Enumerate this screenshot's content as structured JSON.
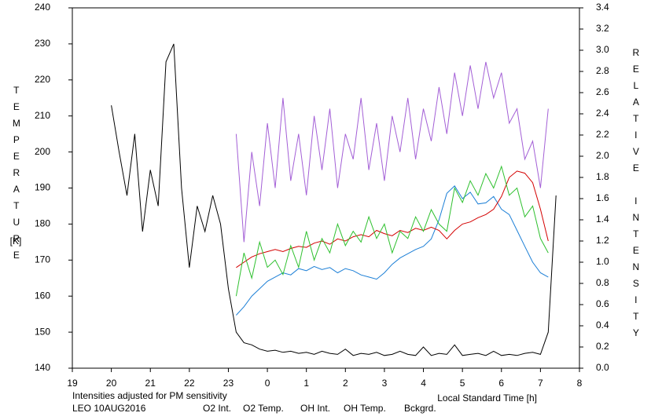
{
  "chart_data": {
    "type": "line",
    "y_label": "TEMPERATURE",
    "y_unit": "[K]",
    "y2_label": "RELATIVE INTENSITY",
    "x_label": "Local Standard Time [h]",
    "note": "Intensities adjusted for PM sensitivity",
    "station": "LEO 10AUG2016",
    "note_color": "#2ec02e",
    "xlim": [
      19,
      32
    ],
    "xticks": [
      19,
      20,
      21,
      22,
      23,
      {
        "value": 24,
        "label": "0"
      },
      {
        "value": 25,
        "label": "1"
      },
      {
        "value": 26,
        "label": "2"
      },
      {
        "value": 27,
        "label": "3"
      },
      {
        "value": 28,
        "label": "4"
      },
      {
        "value": 29,
        "label": "5"
      },
      {
        "value": 30,
        "label": "6"
      },
      {
        "value": 31,
        "label": "7"
      },
      {
        "value": 32,
        "label": "8"
      }
    ],
    "ylim": [
      140,
      240
    ],
    "yticks": [
      140,
      150,
      160,
      170,
      180,
      190,
      200,
      210,
      220,
      230,
      240
    ],
    "y2lim": [
      0,
      3.4
    ],
    "y2ticks": [
      {
        "value": 0,
        "label": "0.0"
      },
      0.2,
      0.4,
      0.6,
      0.8,
      {
        "value": 1,
        "label": "1.0"
      },
      1.2,
      1.4,
      1.6,
      1.8,
      {
        "value": 2,
        "label": "2.0"
      },
      2.2,
      2.4,
      2.6,
      2.8,
      {
        "value": 3,
        "label": "3.0"
      },
      3.2,
      3.4
    ],
    "x": [
      23.2,
      23.4,
      23.6,
      23.8,
      24.0,
      24.2,
      24.4,
      24.6,
      24.8,
      25.0,
      25.2,
      25.4,
      25.6,
      25.8,
      26.0,
      26.2,
      26.4,
      26.6,
      26.8,
      27.0,
      27.2,
      27.4,
      27.6,
      27.8,
      28.0,
      28.2,
      28.4,
      28.6,
      28.8,
      29.0,
      29.2,
      29.4,
      29.6,
      29.8,
      30.0,
      30.2,
      30.4,
      30.6,
      30.8,
      31.0,
      31.2
    ],
    "series": [
      {
        "name": "O2 Int.",
        "color": "#1c7fd6",
        "axis": "y2",
        "values": [
          0.5,
          0.58,
          0.68,
          0.75,
          0.82,
          0.86,
          0.9,
          0.88,
          0.94,
          0.92,
          0.96,
          0.93,
          0.95,
          0.9,
          0.94,
          0.92,
          0.88,
          0.86,
          0.84,
          0.9,
          0.98,
          1.04,
          1.08,
          1.12,
          1.15,
          1.22,
          1.4,
          1.65,
          1.72,
          1.6,
          1.66,
          1.55,
          1.56,
          1.62,
          1.5,
          1.45,
          1.3,
          1.15,
          1.0,
          0.9,
          0.86
        ]
      },
      {
        "name": "O2 Temp.",
        "color": "#a35fd6",
        "values": [
          205,
          175,
          200,
          185,
          208,
          190,
          215,
          192,
          205,
          188,
          210,
          195,
          212,
          190,
          205,
          198,
          215,
          195,
          208,
          192,
          210,
          200,
          215,
          198,
          212,
          203,
          218,
          205,
          222,
          210,
          224,
          212,
          225,
          215,
          222,
          208,
          212,
          198,
          203,
          190,
          212
        ]
      },
      {
        "name": "OH Int.",
        "color": "#d40000",
        "axis": "y2",
        "values": [
          0.95,
          1.0,
          1.05,
          1.08,
          1.1,
          1.12,
          1.1,
          1.13,
          1.15,
          1.14,
          1.18,
          1.2,
          1.17,
          1.22,
          1.2,
          1.24,
          1.26,
          1.24,
          1.3,
          1.27,
          1.25,
          1.3,
          1.28,
          1.32,
          1.3,
          1.33,
          1.3,
          1.22,
          1.3,
          1.36,
          1.38,
          1.42,
          1.45,
          1.5,
          1.62,
          1.8,
          1.86,
          1.84,
          1.75,
          1.5,
          1.2
        ]
      },
      {
        "name": "OH Temp.",
        "color": "#2ec02e",
        "values": [
          160,
          172,
          165,
          175,
          168,
          170,
          166,
          174,
          168,
          178,
          170,
          176,
          172,
          180,
          174,
          178,
          175,
          182,
          176,
          180,
          172,
          178,
          176,
          182,
          178,
          184,
          180,
          178,
          190,
          186,
          192,
          188,
          194,
          190,
          196,
          188,
          190,
          182,
          185,
          176,
          172
        ]
      },
      {
        "name": "Bckgrd.",
        "color": "#000000",
        "axis": "y2",
        "x": [
          20.0,
          20.2,
          20.4,
          20.6,
          20.8,
          21.0,
          21.2,
          21.4,
          21.6,
          21.8,
          22.0,
          22.2,
          22.4,
          22.6,
          22.8,
          23.0,
          23.2,
          23.4,
          23.6,
          23.8,
          24.0,
          24.2,
          24.4,
          24.6,
          24.8,
          25.0,
          25.2,
          25.4,
          25.6,
          25.8,
          26.0,
          26.2,
          26.4,
          26.6,
          26.8,
          27.0,
          27.2,
          27.4,
          27.6,
          27.8,
          28.0,
          28.2,
          28.4,
          28.6,
          28.8,
          29.0,
          29.2,
          29.4,
          29.6,
          29.8,
          30.0,
          30.2,
          30.4,
          30.6,
          30.8,
          31.0,
          31.2,
          31.4
        ],
        "values": [
          2.48,
          2.04,
          1.63,
          2.21,
          1.29,
          1.87,
          1.53,
          2.89,
          3.06,
          1.7,
          0.95,
          1.53,
          1.29,
          1.63,
          1.36,
          0.75,
          0.34,
          0.24,
          0.22,
          0.18,
          0.16,
          0.17,
          0.15,
          0.16,
          0.14,
          0.15,
          0.13,
          0.16,
          0.14,
          0.13,
          0.18,
          0.12,
          0.14,
          0.13,
          0.15,
          0.12,
          0.13,
          0.16,
          0.13,
          0.12,
          0.2,
          0.12,
          0.14,
          0.13,
          0.22,
          0.12,
          0.13,
          0.14,
          0.12,
          0.16,
          0.12,
          0.13,
          0.12,
          0.14,
          0.15,
          0.13,
          0.34,
          1.63
        ]
      }
    ]
  }
}
